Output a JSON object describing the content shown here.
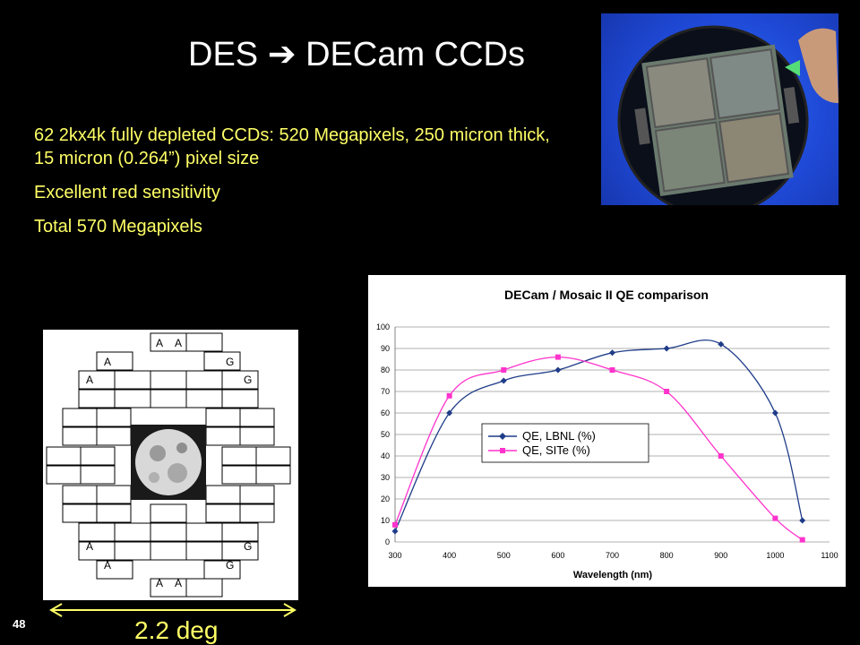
{
  "slide": {
    "title": "DES ➔ DECam CCDs",
    "bullets": [
      "62 2kx4k fully depleted CCDs: 520 Megapixels, 250 micron thick, 15 micron (0.264”) pixel size",
      "Excellent red sensitivity",
      "Total 570 Megapixels"
    ],
    "page_number": "48",
    "scale_label": "2.2 deg"
  },
  "focal_plane": {
    "labels": {
      "a": "A",
      "g": "G"
    }
  },
  "colors": {
    "text_yellow": "#ffff66",
    "lbnl": "#1f3c88",
    "site": "#ff33cc"
  },
  "chart_data": {
    "type": "line",
    "title": "DECam / Mosaic II QE comparison",
    "xlabel": "Wavelength (nm)",
    "ylabel": "",
    "xlim": [
      300,
      1100
    ],
    "ylim": [
      0,
      100
    ],
    "xticks": [
      300,
      400,
      500,
      600,
      700,
      800,
      900,
      1000,
      1100
    ],
    "yticks": [
      0,
      10,
      20,
      30,
      40,
      50,
      60,
      70,
      80,
      90,
      100
    ],
    "grid": "horizontal",
    "legend": "center",
    "series": [
      {
        "name": "QE, LBNL (%)",
        "marker": "diamond",
        "x": [
          300,
          400,
          500,
          600,
          700,
          800,
          900,
          1000,
          1050
        ],
        "y": [
          5,
          60,
          75,
          80,
          88,
          90,
          92,
          60,
          10
        ]
      },
      {
        "name": "QE, SITe (%)",
        "marker": "square",
        "x": [
          300,
          400,
          500,
          600,
          700,
          800,
          900,
          1000,
          1050
        ],
        "y": [
          8,
          68,
          80,
          86,
          80,
          70,
          40,
          11,
          1
        ]
      }
    ]
  }
}
